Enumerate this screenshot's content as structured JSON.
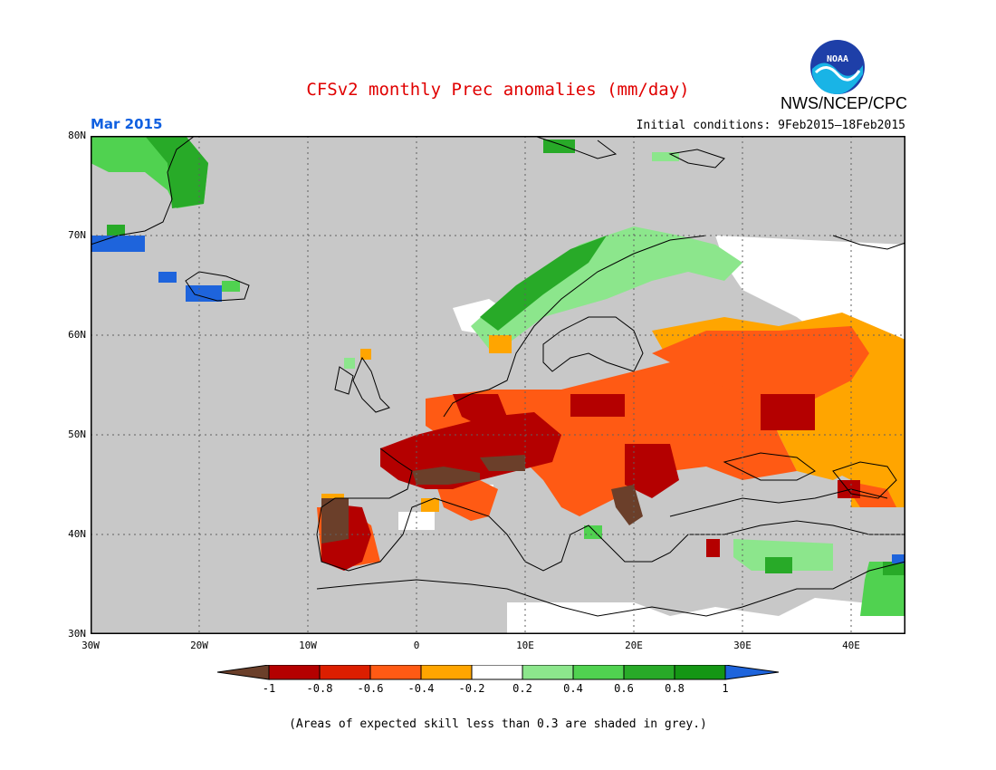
{
  "header": {
    "title": "CFSv2 monthly Prec anomalies (mm/day)",
    "agency": "NWS/NCEP/CPC",
    "logo_text": "NOAA",
    "month": "Mar 2015",
    "initial_conditions": "Initial conditions: 9Feb2015–18Feb2015"
  },
  "map": {
    "background_color": "#c8c8c8",
    "lat_labels": [
      "80N",
      "70N",
      "60N",
      "50N",
      "40N",
      "30N"
    ],
    "lon_labels": [
      "30W",
      "20W",
      "10W",
      "0",
      "10E",
      "20E",
      "30E",
      "40E"
    ]
  },
  "colorbar": {
    "tick_labels": [
      "-1",
      "-0.8",
      "-0.6",
      "-0.4",
      "-0.2",
      "0.2",
      "0.4",
      "0.6",
      "0.8",
      "1"
    ],
    "colors": {
      "lt_neg1": "#6b3f2a",
      "neg1_to_neg08": "#b40000",
      "neg08_to_neg06": "#dc1e00",
      "neg06_to_neg04": "#ff5a14",
      "neg04_to_neg02": "#ffa500",
      "neg02_to_02": "#ffffff",
      "p02_to_p04": "#8ce68c",
      "p04_to_p06": "#50d250",
      "p06_to_p08": "#28aa28",
      "p08_to_p1": "#149614",
      "gt_1": "#1e64dc"
    }
  },
  "footnote": "(Areas of expected skill less than 0.3 are shaded in grey.)"
}
